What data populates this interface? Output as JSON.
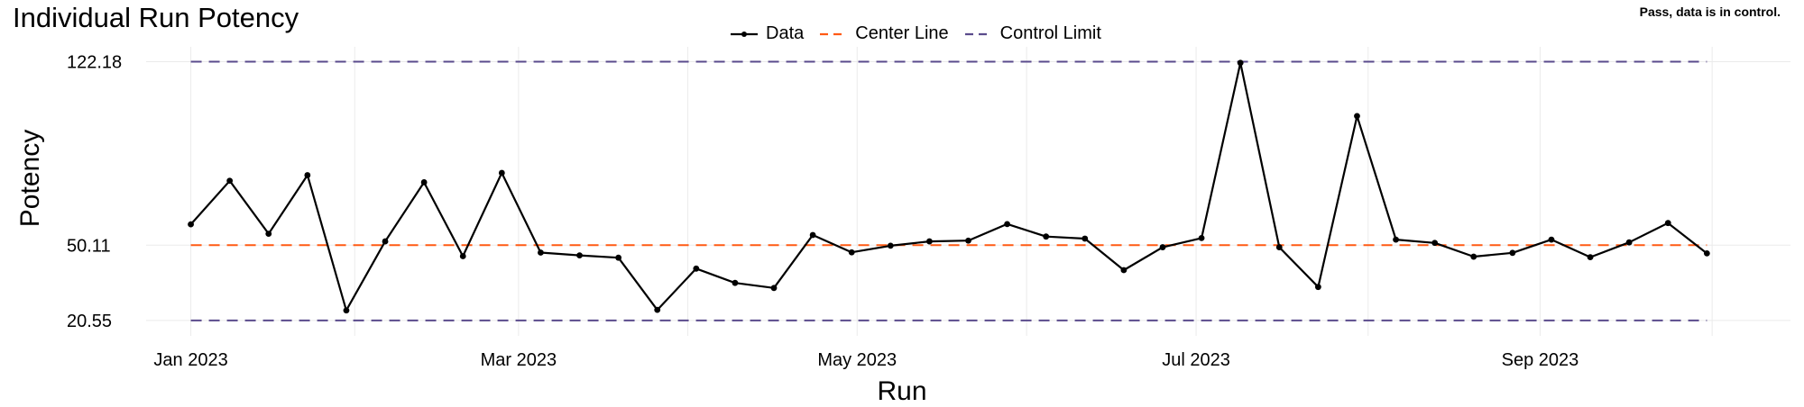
{
  "chart_data": {
    "type": "line",
    "title": "Individual Run Potency",
    "status": "Pass, data is in control.",
    "xlabel": "Run",
    "ylabel": "Potency",
    "legend": {
      "position": "top-center",
      "entries": [
        {
          "name": "Data",
          "color": "#000000",
          "style": "line-with-points"
        },
        {
          "name": "Center Line",
          "color": "#ff5a14",
          "style": "dashed"
        },
        {
          "name": "Control Limit",
          "color": "#5a4b8c",
          "style": "dashed"
        }
      ]
    },
    "x_ticks": [
      {
        "label": "Jan 2023",
        "week": 0
      },
      {
        "label": "Mar 2023",
        "week": 8.43
      },
      {
        "label": "May 2023",
        "week": 17.14
      },
      {
        "label": "Jul 2023",
        "week": 25.86
      },
      {
        "label": "Sep 2023",
        "week": 34.71
      }
    ],
    "y_ticks": [
      20.55,
      50.11,
      122.18
    ],
    "ylim": [
      14.5,
      128.0
    ],
    "xlim": [
      -1.15,
      41.15
    ],
    "center_line": 50.11,
    "control_limits": {
      "upper": 122.18,
      "lower": 20.55
    },
    "grid": true,
    "series": [
      {
        "name": "Data",
        "start": "Jan 2023",
        "interval": "weekly",
        "values": [
          58.3,
          75.4,
          54.6,
          77.6,
          24.5,
          51.6,
          74.8,
          45.8,
          78.5,
          47.2,
          46.1,
          45.2,
          24.7,
          40.9,
          35.3,
          33.3,
          54.1,
          47.3,
          49.9,
          51.6,
          51.9,
          58.4,
          53.5,
          52.7,
          40.3,
          49.3,
          52.9,
          121.7,
          49.3,
          33.7,
          100.8,
          52.3,
          51.0,
          45.6,
          47.1,
          52.3,
          45.4,
          51.2,
          58.8,
          46.9
        ]
      }
    ]
  }
}
